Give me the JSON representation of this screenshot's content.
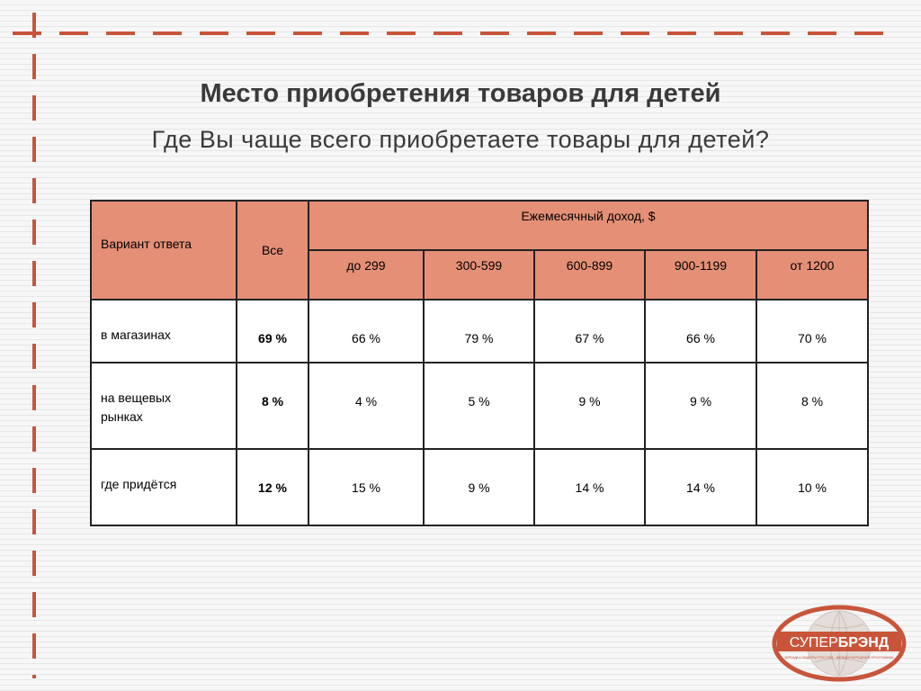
{
  "title": "Место приобретения товаров для детей",
  "subtitle": "Где Вы чаще всего приобретаете товары для детей?",
  "table": {
    "col_answer": "Вариант ответа",
    "col_all": "Все",
    "col_income_group": "Ежемесячный доход, $",
    "income_brackets": [
      "до 299",
      "300-599",
      "600-899",
      "900-1199",
      "от 1200"
    ],
    "rows": [
      {
        "label": "в магазинах",
        "all": "69 %",
        "values": [
          "66 %",
          "79 %",
          "67 %",
          "66 %",
          "70 %"
        ]
      },
      {
        "label": "на вещевых рынках",
        "all": "8 %",
        "values": [
          "4 %",
          "5 %",
          "9 %",
          "9 %",
          "8 %"
        ]
      },
      {
        "label": "где придётся",
        "all": "12 %",
        "values": [
          "15 %",
          "9 %",
          "14 %",
          "14 %",
          "10 %"
        ]
      }
    ]
  },
  "logo": {
    "brand": "СУПЕРБРЭНД",
    "brand_part1": "СУПЕР",
    "brand_part2": "БРЭНД",
    "tagline": "БРЕНДЫ-ЛИДЕРЫ РОССИИ · МЕЖДУНАРОДНАЯ ПРОГРАММА",
    "colors": {
      "primary": "#c8553a",
      "globe": "#d9d0cc"
    }
  },
  "colors": {
    "header_bg": "#e58f77",
    "frame": "#c8553a",
    "text": "#3a3a3a"
  }
}
